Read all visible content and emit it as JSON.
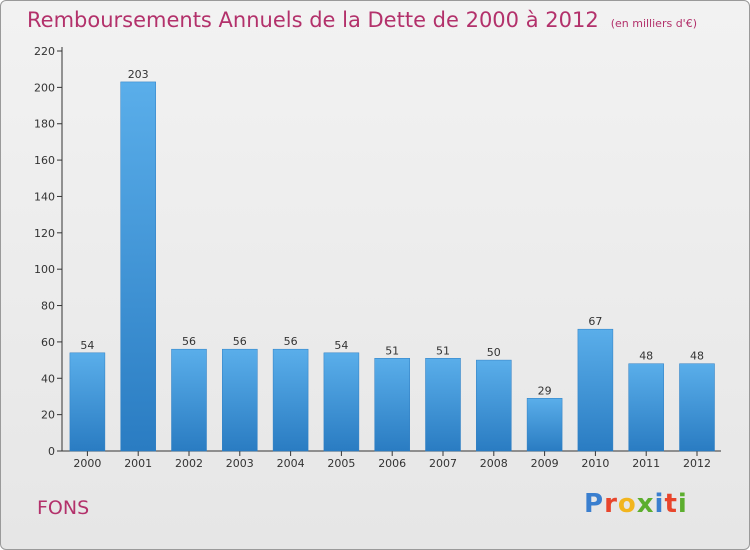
{
  "chart_data": {
    "type": "bar",
    "title": "Remboursements Annuels de la Dette de 2000 à 2012",
    "subtitle": "(en milliers d'€)",
    "categories": [
      "2000",
      "2001",
      "2002",
      "2003",
      "2004",
      "2005",
      "2006",
      "2007",
      "2008",
      "2009",
      "2010",
      "2011",
      "2012"
    ],
    "values": [
      54,
      203,
      56,
      56,
      56,
      54,
      51,
      51,
      50,
      29,
      67,
      48,
      48
    ],
    "ylim": [
      0,
      220
    ],
    "yticks": [
      0,
      20,
      40,
      60,
      80,
      100,
      120,
      140,
      160,
      180,
      200,
      220
    ],
    "grid": false,
    "bar_color": "#3a93d6"
  },
  "town": "FONS",
  "logo": {
    "text": "Proxiti",
    "letters": [
      {
        "ch": "P",
        "color": "#3a7fcf"
      },
      {
        "ch": "r",
        "color": "#e8452c"
      },
      {
        "ch": "o",
        "color": "#f2b51e"
      },
      {
        "ch": "x",
        "color": "#5cae2e"
      },
      {
        "ch": "i",
        "color": "#3a7fcf"
      },
      {
        "ch": "t",
        "color": "#e8452c"
      },
      {
        "ch": "i",
        "color": "#5cae2e"
      }
    ]
  }
}
